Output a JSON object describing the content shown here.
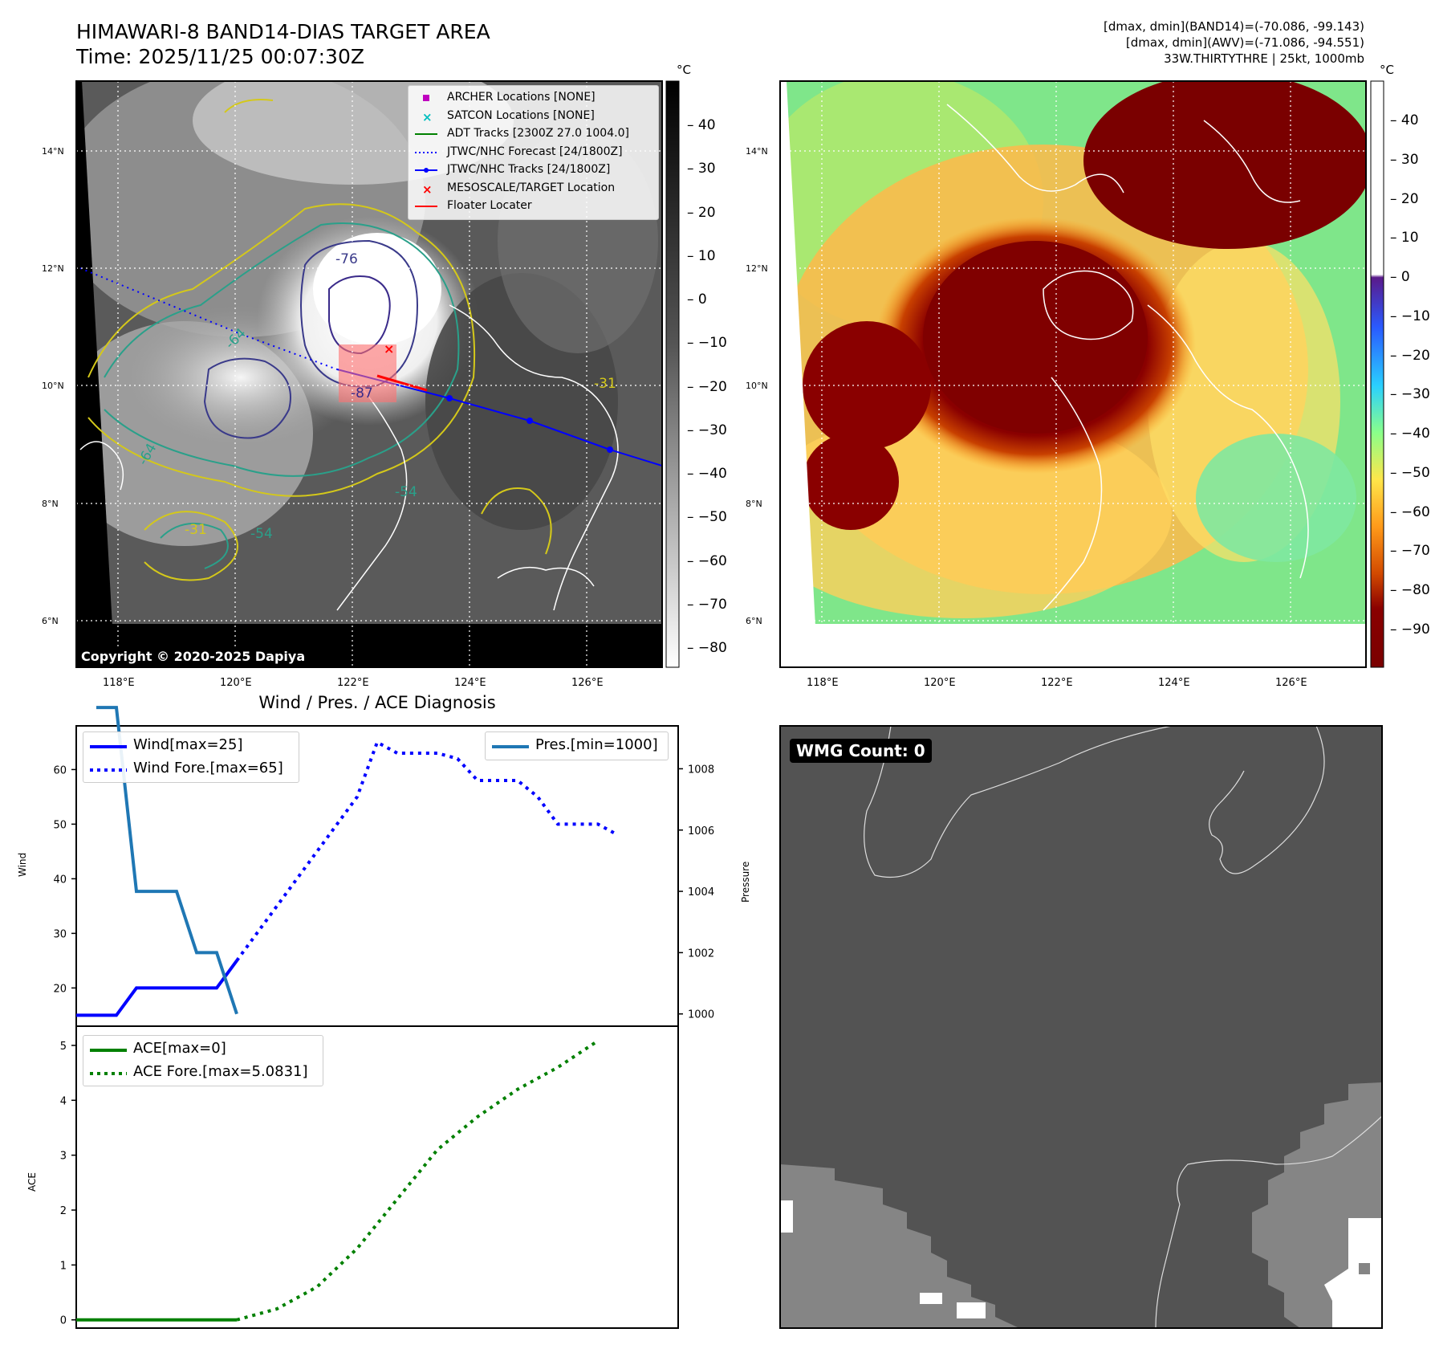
{
  "header": {
    "title_line1": "HIMAWARI-8 BAND14-DIAS TARGET AREA",
    "title_line2": "Time: 2025/11/25 00:07:30Z",
    "info_line1": "[dmax, dmin](BAND14)=(-70.086, -99.143)",
    "info_line2": "[dmax, dmin](AWV)=(-71.086, -94.551)",
    "info_line3": "33W.THIRTYTHRE | 25kt, 1000mb"
  },
  "map_left": {
    "copyright": "Copyright © 2020-2025 Dapiya",
    "lat_labels": [
      "14°N",
      "12°N",
      "10°N",
      "8°N",
      "6°N"
    ],
    "lon_labels": [
      "118°E",
      "120°E",
      "122°E",
      "124°E",
      "126°E"
    ],
    "contour_labels": [
      "-76",
      "-64",
      "-54",
      "-31",
      "-87",
      "-31",
      "-64",
      "-54"
    ],
    "legend": [
      {
        "label": "ARCHER Locations [NONE]",
        "color": "#bf00bf",
        "marker": "square"
      },
      {
        "label": "SATCON Locations [NONE]",
        "color": "#00bfbf",
        "marker": "x"
      },
      {
        "label": "ADT Tracks [2300Z 27.0 1004.0]",
        "color": "#008000",
        "marker": "line"
      },
      {
        "label": "JTWC/NHC Forecast [24/1800Z]",
        "color": "#0000ff",
        "marker": "dotted"
      },
      {
        "label": "JTWC/NHC Tracks [24/1800Z]",
        "color": "#0000ff",
        "marker": "line-dot"
      },
      {
        "label": "MESOSCALE/TARGET Location",
        "color": "#ff0000",
        "marker": "x"
      },
      {
        "label": "Floater Locater",
        "color": "#ff0000",
        "marker": "line"
      }
    ],
    "colorbar": {
      "unit": "°C",
      "ticks": [
        "40",
        "30",
        "20",
        "10",
        "0",
        "−10",
        "−20",
        "−30",
        "−40",
        "−50",
        "−60",
        "−70",
        "−80"
      ]
    }
  },
  "map_right": {
    "lat_labels": [
      "14°N",
      "12°N",
      "10°N",
      "8°N",
      "6°N"
    ],
    "lon_labels": [
      "118°E",
      "120°E",
      "122°E",
      "124°E",
      "126°E"
    ],
    "colorbar": {
      "unit": "°C",
      "ticks": [
        "40",
        "30",
        "20",
        "10",
        "0",
        "−10",
        "−20",
        "−30",
        "−40",
        "−50",
        "−60",
        "−70",
        "−80",
        "−90"
      ]
    }
  },
  "wmg": {
    "label": "WMG Count: 0"
  },
  "chart_data": [
    {
      "type": "line",
      "title": "Wind / Pres. / ACE Diagnosis",
      "ylabel": "Wind",
      "y2label": "Pressure",
      "ylim": [
        13,
        68
      ],
      "y2lim": [
        999.6,
        1009.4
      ],
      "yticks": [
        "20",
        "30",
        "40",
        "50",
        "60"
      ],
      "y2ticks": [
        "1000",
        "1002",
        "1004",
        "1006",
        "1008"
      ],
      "series": [
        {
          "name": "Wind[max=25]",
          "axis": "left",
          "style": "solid",
          "color": "#0000ff",
          "x": [
            0,
            1,
            2,
            3,
            4,
            5,
            6,
            7,
            8
          ],
          "values": [
            15,
            15,
            15,
            20,
            20,
            20,
            20,
            20,
            25
          ]
        },
        {
          "name": "Wind Fore.[max=65]",
          "axis": "left",
          "style": "dotted",
          "color": "#0000ff",
          "x": [
            8,
            10,
            12,
            14,
            15,
            16,
            17,
            18,
            19,
            20,
            21,
            22,
            23,
            24,
            25,
            26,
            27
          ],
          "values": [
            25,
            35,
            45,
            55,
            65,
            63,
            63,
            63,
            62,
            58,
            58,
            58,
            55,
            50,
            50,
            50,
            48
          ]
        },
        {
          "name": "Pres.[min=1000]",
          "axis": "right",
          "style": "solid",
          "color": "#1f77b4",
          "x": [
            1,
            2,
            3,
            4,
            5,
            6,
            7,
            8
          ],
          "values": [
            1010,
            1010,
            1004,
            1004,
            1004,
            1002,
            1002,
            1000
          ]
        }
      ]
    },
    {
      "type": "line",
      "ylabel": "ACE",
      "ylim": [
        -0.15,
        5.35
      ],
      "yticks": [
        "0",
        "1",
        "2",
        "3",
        "4",
        "5"
      ],
      "series": [
        {
          "name": "ACE[max=0]",
          "style": "solid",
          "color": "#008000",
          "x": [
            0,
            8
          ],
          "values": [
            0,
            0
          ]
        },
        {
          "name": "ACE Fore.[max=5.0831]",
          "style": "dotted",
          "color": "#008000",
          "x": [
            8,
            10,
            12,
            14,
            16,
            18,
            20,
            22,
            24,
            26
          ],
          "values": [
            0,
            0.2,
            0.6,
            1.3,
            2.2,
            3.1,
            3.7,
            4.2,
            4.6,
            5.0831
          ]
        }
      ]
    }
  ]
}
